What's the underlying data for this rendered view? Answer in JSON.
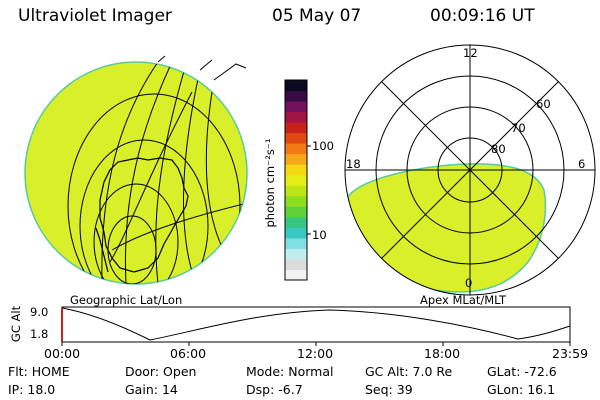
{
  "header": {
    "instrument": "Ultraviolet Imager",
    "date": "05 May 07",
    "time": "00:09:16 UT"
  },
  "colors": {
    "image_fill": "#d8ef2a",
    "image_edge": "#59c9a0",
    "line": "#000000"
  },
  "left_panel": {
    "caption": "Geographic Lat/Lon"
  },
  "right_panel": {
    "caption": "Apex MLat/MLT",
    "mlt_labels": [
      "12",
      "18",
      "6",
      "0"
    ],
    "mlat_labels": [
      "60",
      "70",
      "80"
    ]
  },
  "colorbar": {
    "unit_label": "photon cm⁻²s⁻¹",
    "tick_100": "100",
    "tick_10": "10",
    "colors": [
      "#f2f2f2",
      "#dcdcdc",
      "#c0eef0",
      "#7fe0e4",
      "#39c8c2",
      "#36c780",
      "#5fd23a",
      "#8ede20",
      "#bde616",
      "#e3ee12",
      "#f5d814",
      "#f7a818",
      "#f27a14",
      "#e04a10",
      "#c8201a",
      "#a01446",
      "#72105e",
      "#3a0a44",
      "#0a0a22"
    ]
  },
  "altitude_plot": {
    "ylabel": "GC Alt",
    "y_ticks": [
      "9.0",
      "1.8"
    ],
    "x_ticks": [
      "00:00",
      "06:00",
      "12:00",
      "18:00",
      "23:59"
    ]
  },
  "status": {
    "row1": [
      {
        "label": "Flt:",
        "value": "HOME"
      },
      {
        "label": "Door:",
        "value": "Open"
      },
      {
        "label": "Mode:",
        "value": "Normal"
      },
      {
        "label": "GC Alt:",
        "value": "7.0 Re"
      },
      {
        "label": "GLat:",
        "value": "-72.6"
      }
    ],
    "row2": [
      {
        "label": "IP:",
        "value": "18.0"
      },
      {
        "label": "Gain:",
        "value": "14"
      },
      {
        "label": "Dsp:",
        "value": "-6.7"
      },
      {
        "label": "Seq:",
        "value": "39"
      },
      {
        "label": "GLon:",
        "value": "16.1"
      }
    ]
  }
}
